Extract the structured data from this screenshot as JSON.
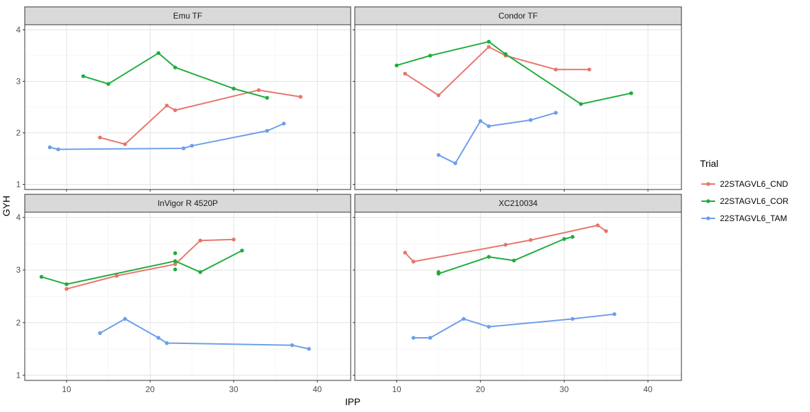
{
  "chart_data": {
    "type": "line",
    "xlabel": "IPP",
    "ylabel": "GYH",
    "xlim": [
      5,
      44
    ],
    "ylim": [
      0.9,
      4.1
    ],
    "xticks": [
      10,
      20,
      30,
      40
    ],
    "yticks": [
      1,
      2,
      3,
      4
    ],
    "grid": true,
    "legend": {
      "title": "Trial",
      "position": "right",
      "entries": [
        "22STAGVL6_CND",
        "22STAGVL6_COR",
        "22STAGVL6_TAM"
      ]
    },
    "colors": {
      "22STAGVL6_CND": "#e8756d",
      "22STAGVL6_COR": "#1fad3d",
      "22STAGVL6_TAM": "#6d9eeb"
    },
    "panels": [
      {
        "title": "Emu TF",
        "ytick_labels": [
          "1",
          "2",
          "3",
          "4"
        ],
        "series": [
          {
            "name": "22STAGVL6_CND",
            "x": [
              14,
              17,
              22,
              23,
              33,
              38
            ],
            "y": [
              1.91,
              1.78,
              2.53,
              2.44,
              2.83,
              2.7
            ]
          },
          {
            "name": "22STAGVL6_COR",
            "x": [
              12,
              15,
              21,
              23,
              30,
              34
            ],
            "y": [
              3.1,
              2.95,
              3.55,
              3.27,
              2.86,
              2.68
            ]
          },
          {
            "name": "22STAGVL6_TAM",
            "x": [
              8,
              9,
              24,
              25,
              34,
              36
            ],
            "y": [
              1.72,
              1.68,
              1.7,
              1.75,
              2.04,
              2.18
            ]
          }
        ]
      },
      {
        "title": "Condor TF",
        "ytick_labels": [
          "",
          "",
          "",
          ""
        ],
        "series": [
          {
            "name": "22STAGVL6_CND",
            "x": [
              11,
              15,
              21,
              23,
              29,
              33
            ],
            "y": [
              3.15,
              2.73,
              3.67,
              3.5,
              3.23,
              3.23
            ]
          },
          {
            "name": "22STAGVL6_COR",
            "x": [
              10,
              14,
              21,
              23,
              32,
              38
            ],
            "y": [
              3.31,
              3.5,
              3.77,
              3.53,
              2.56,
              2.77
            ]
          },
          {
            "name": "22STAGVL6_TAM",
            "x": [
              15,
              17,
              20,
              21,
              26,
              29
            ],
            "y": [
              1.57,
              1.41,
              2.23,
              2.13,
              2.25,
              2.39
            ]
          }
        ]
      },
      {
        "title": "InVigor R 4520P",
        "ytick_labels": [
          "1",
          "2",
          "3",
          "4"
        ],
        "series": [
          {
            "name": "22STAGVL6_CND",
            "x": [
              10,
              16,
              23,
              26,
              30
            ],
            "y": [
              2.64,
              2.89,
              3.11,
              3.56,
              3.58
            ]
          },
          {
            "name": "22STAGVL6_COR",
            "x": [
              7,
              10,
              23,
              26,
              31
            ],
            "y": [
              2.87,
              2.73,
              3.17,
              2.96,
              3.37
            ]
          },
          {
            "name": "22STAGVL6_TAM",
            "x": [
              14,
              17,
              21,
              22,
              37,
              39
            ],
            "y": [
              1.8,
              2.07,
              1.71,
              1.61,
              1.57,
              1.5
            ]
          }
        ],
        "extra_points": [
          {
            "name": "22STAGVL6_COR",
            "x": 23,
            "y": 3.32
          },
          {
            "name": "22STAGVL6_COR",
            "x": 23,
            "y": 3.01
          }
        ]
      },
      {
        "title": "XC210034",
        "ytick_labels": [
          "",
          "",
          "",
          ""
        ],
        "series": [
          {
            "name": "22STAGVL6_CND",
            "x": [
              11,
              12,
              23,
              26,
              34,
              35
            ],
            "y": [
              3.33,
              3.16,
              3.48,
              3.57,
              3.85,
              3.74
            ]
          },
          {
            "name": "22STAGVL6_COR",
            "x": [
              15,
              21,
              24,
              30,
              31
            ],
            "y": [
              2.93,
              3.25,
              3.18,
              3.59,
              3.63
            ]
          },
          {
            "name": "22STAGVL6_TAM",
            "x": [
              12,
              14,
              18,
              21,
              31,
              36
            ],
            "y": [
              1.71,
              1.71,
              2.07,
              1.92,
              2.07,
              2.16
            ]
          }
        ],
        "extra_points": [
          {
            "name": "22STAGVL6_COR",
            "x": 15,
            "y": 2.96
          }
        ]
      }
    ]
  }
}
